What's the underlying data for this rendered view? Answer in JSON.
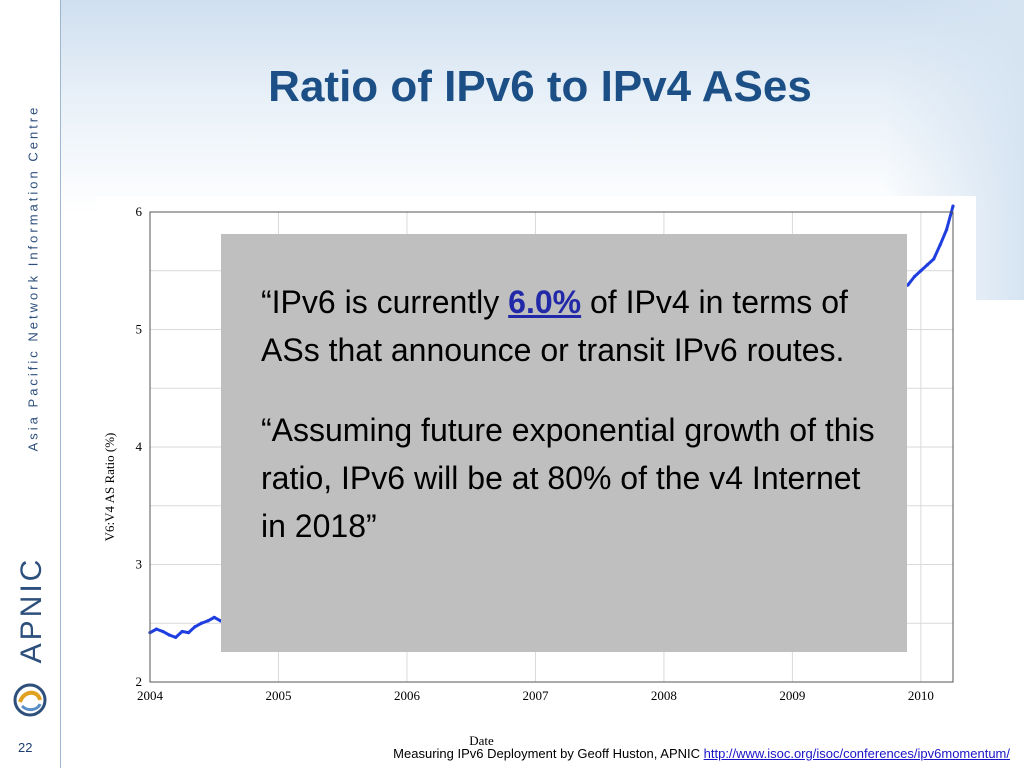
{
  "slide": {
    "title": "Ratio of IPv6 to IPv4 ASes",
    "slide_number": "22"
  },
  "sidebar": {
    "organization": "Asia Pacific Network Information Centre",
    "logo_text": "APNIC",
    "logo_icon": "apnic-swirl-icon"
  },
  "quote": {
    "p1_before": "“IPv6 is currently ",
    "p1_highlight": "6.0%",
    "p1_after": " of IPv4 in terms of ASs that announce or transit IPv6 routes.",
    "p2": "“Assuming future exponential growth of this ratio, IPv6 will be at 80% of the v4 Internet in 2018”"
  },
  "footer": {
    "text": "Measuring IPv6 Deployment by Geoff Huston, APNIC ",
    "link": "http://www.isoc.org/isoc/conferences/ipv6momentum/"
  },
  "colors": {
    "title": "#1b4f86",
    "series": "#1f3ee0",
    "overlay": "#bfbfbf",
    "highlight": "#2229a8",
    "link": "#1a14c8"
  },
  "chart_data": {
    "type": "line",
    "xlabel": "Date",
    "ylabel": "V6:V4 AS Ratio (%)",
    "xlim": [
      2004.0,
      2010.25
    ],
    "ylim": [
      2,
      6
    ],
    "x_ticks": [
      2004,
      2005,
      2006,
      2007,
      2008,
      2009,
      2010
    ],
    "y_ticks": [
      2,
      3,
      4,
      5,
      6
    ],
    "grid": true,
    "series": [
      {
        "x": [
          2004.0,
          2004.05,
          2004.1,
          2004.15,
          2004.2,
          2004.25,
          2004.3,
          2004.35,
          2004.4,
          2004.45,
          2004.5,
          2004.55,
          2009.9,
          2009.95,
          2010.0,
          2010.05,
          2010.1,
          2010.15,
          2010.2,
          2010.25
        ],
        "y": [
          2.42,
          2.45,
          2.43,
          2.4,
          2.38,
          2.43,
          2.42,
          2.47,
          2.5,
          2.52,
          2.55,
          2.52,
          5.38,
          5.45,
          5.5,
          5.55,
          5.6,
          5.72,
          5.85,
          6.05
        ]
      }
    ]
  }
}
